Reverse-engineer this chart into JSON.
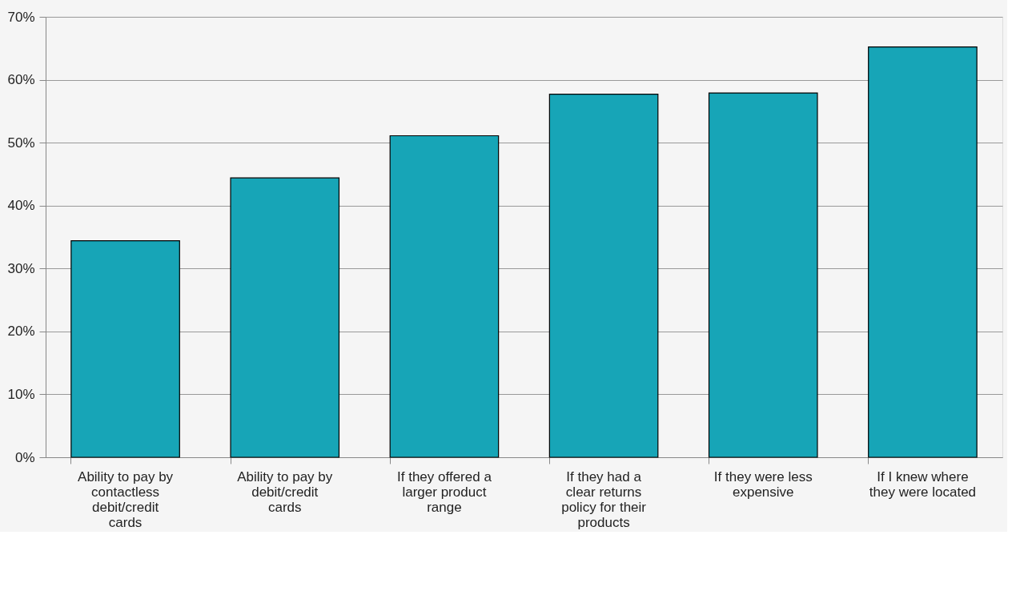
{
  "chart_data": {
    "type": "bar",
    "categories": [
      "Ability to pay by contactless debit/credit cards",
      "Ability to pay by debit/credit cards",
      "If they offered a larger product range",
      "If they had a clear returns policy for their products",
      "If they were less expensive",
      "If I knew where they were located"
    ],
    "values": [
      34.4,
      44.4,
      51.1,
      57.7,
      57.9,
      65.2
    ],
    "color": "#17a5b7",
    "ylim": [
      0,
      70
    ],
    "yticks": [
      {
        "value": 0,
        "label": "0%"
      },
      {
        "value": 10,
        "label": "10%"
      },
      {
        "value": 20,
        "label": "20%"
      },
      {
        "value": 30,
        "label": "30%"
      },
      {
        "value": 40,
        "label": "40%"
      },
      {
        "value": 50,
        "label": "50%"
      },
      {
        "value": 60,
        "label": "60%"
      },
      {
        "value": 70,
        "label": "70%"
      }
    ],
    "grid": "y"
  }
}
